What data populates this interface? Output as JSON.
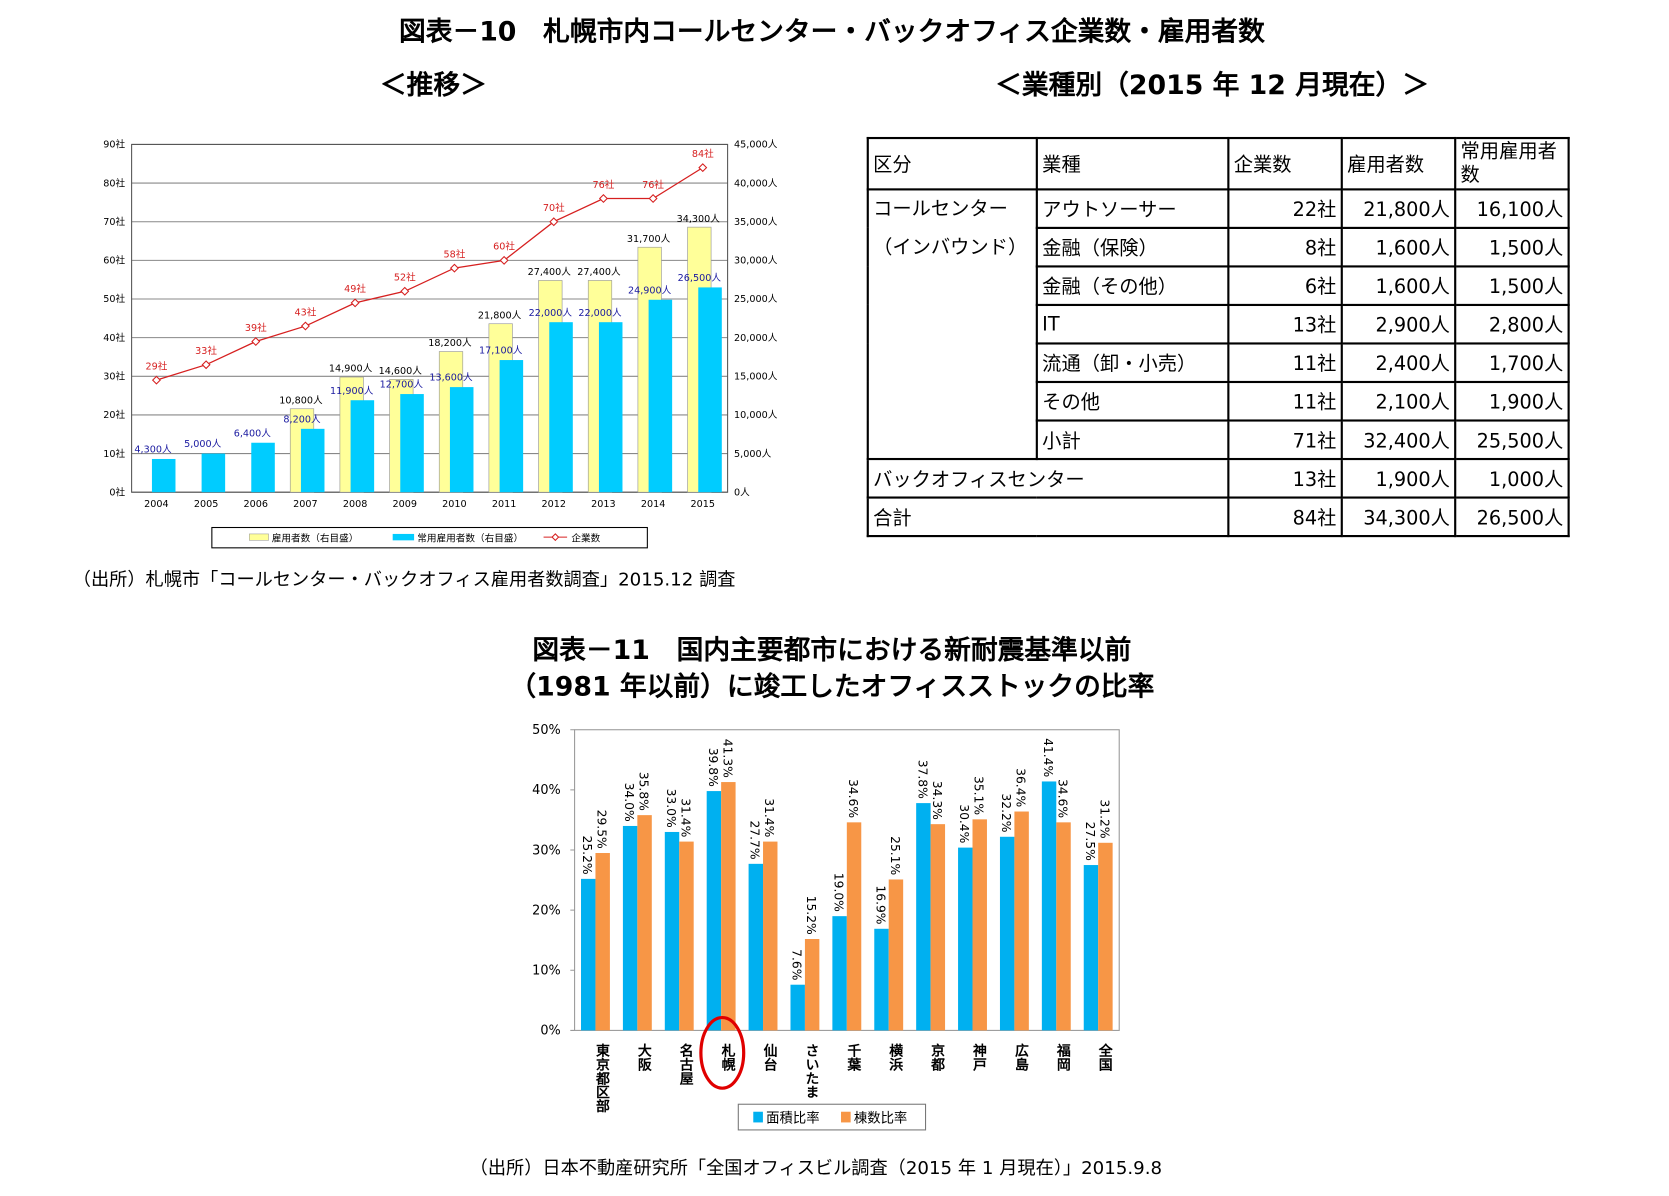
{
  "fig10": {
    "title": "図表－10　札幌市内コールセンター・バックオフィス企業数・雇用者数",
    "sub_left": "＜推移＞",
    "sub_right": "＜業種別（2015 年 12 月現在）＞",
    "source": "（出所）札幌市「コールセンター・バックオフィス雇用者数調査」2015.12 調査"
  },
  "table": {
    "headers": [
      "区分",
      "業種",
      "企業数",
      "雇用者数",
      "常用雇用者数"
    ],
    "group1": "コールセンター（インバウンド）",
    "group1_line1": "コールセンター",
    "group1_line2": "（インバウンド）",
    "rows": [
      [
        "アウトソーサー",
        "22社",
        "21,800人",
        "16,100人"
      ],
      [
        "金融（保険）",
        "8社",
        "1,600人",
        "1,500人"
      ],
      [
        "金融（その他）",
        "6社",
        "1,600人",
        "1,500人"
      ],
      [
        "IT",
        "13社",
        "2,900人",
        "2,800人"
      ],
      [
        "流通（卸・小売）",
        "11社",
        "2,400人",
        "1,700人"
      ],
      [
        "その他",
        "11社",
        "2,100人",
        "1,900人"
      ],
      [
        "小計",
        "71社",
        "32,400人",
        "25,500人"
      ]
    ],
    "backoffice": [
      "バックオフィスセンター",
      "13社",
      "1,900人",
      "1,000人"
    ],
    "total": [
      "合計",
      "84社",
      "34,300人",
      "26,500人"
    ]
  },
  "fig11": {
    "title_line1": "図表－11　国内主要都市における新耐震基準以前",
    "title_line2": "（1981 年以前）に竣工したオフィスストックの比率",
    "source": "（出所）日本不動産研究所「全国オフィスビル調査（2015 年 1 月現在）」2015.9.8"
  },
  "chart_data": [
    {
      "type": "bar",
      "categories": [
        "2004",
        "2005",
        "2006",
        "2007",
        "2008",
        "2009",
        "2010",
        "2011",
        "2012",
        "2013",
        "2014",
        "2015"
      ],
      "series": [
        {
          "name": "雇用者数（右目盛）",
          "axis": "right",
          "color": "#ffff99",
          "values": [
            null,
            null,
            null,
            10800,
            14900,
            14600,
            18200,
            21800,
            27400,
            27400,
            31700,
            34300
          ],
          "labels": [
            "",
            "",
            "",
            "10,800人",
            "14,900人",
            "14,600人",
            "18,200人",
            "21,800人",
            "27,400人",
            "27,400人",
            "31,700人",
            "34,300人"
          ]
        },
        {
          "name": "常用雇用者数（右目盛）",
          "axis": "right",
          "color": "#00ccff",
          "values": [
            4300,
            5000,
            6400,
            8200,
            11900,
            12700,
            13600,
            17100,
            22000,
            22000,
            24900,
            26500
          ],
          "labels": [
            "4,300人",
            "5,000人",
            "6,400人",
            "8,200人",
            "11,900人",
            "12,700人",
            "13,600人",
            "17,100人",
            "22,000人",
            "22,000人",
            "24,900人",
            "26,500人"
          ]
        },
        {
          "name": "企業数",
          "type": "line",
          "axis": "left",
          "color": "#d62020",
          "values": [
            29,
            33,
            39,
            43,
            49,
            52,
            58,
            60,
            70,
            76,
            76,
            84
          ],
          "labels": [
            "29社",
            "33社",
            "39社",
            "43社",
            "49社",
            "52社",
            "58社",
            "60社",
            "70社",
            "76社",
            "76社",
            "84社"
          ]
        }
      ],
      "left_axis": {
        "range": [
          0,
          90
        ],
        "ticks": [
          "0社",
          "10社",
          "20社",
          "30社",
          "40社",
          "50社",
          "60社",
          "70社",
          "80社",
          "90社"
        ]
      },
      "right_axis": {
        "range": [
          0,
          45000
        ],
        "ticks": [
          "0人",
          "5,000人",
          "10,000人",
          "15,000人",
          "20,000人",
          "25,000人",
          "30,000人",
          "35,000人",
          "40,000人",
          "45,000人"
        ]
      },
      "grid": true,
      "legend": "bottom"
    },
    {
      "type": "bar",
      "categories": [
        "東京都区部",
        "大阪",
        "名古屋",
        "札幌",
        "仙台",
        "さいたま",
        "千葉",
        "横浜",
        "京都",
        "神戸",
        "広島",
        "福岡",
        "全国"
      ],
      "series": [
        {
          "name": "面積比率",
          "color": "#00b0f0",
          "values": [
            25.2,
            34.0,
            33.0,
            39.8,
            27.7,
            7.6,
            19.0,
            16.9,
            37.8,
            30.4,
            32.2,
            41.4,
            27.5
          ]
        },
        {
          "name": "棟数比率",
          "color": "#f79646",
          "values": [
            29.5,
            35.8,
            31.4,
            41.3,
            31.4,
            15.2,
            34.6,
            25.1,
            34.3,
            35.1,
            36.4,
            34.6,
            31.2
          ]
        }
      ],
      "y_axis": {
        "range": [
          0,
          50
        ],
        "ticks": [
          "0%",
          "10%",
          "20%",
          "30%",
          "40%",
          "50%"
        ]
      },
      "highlight": "札幌",
      "highlight_color": "#e00000",
      "grid": false,
      "legend": "bottom"
    }
  ]
}
